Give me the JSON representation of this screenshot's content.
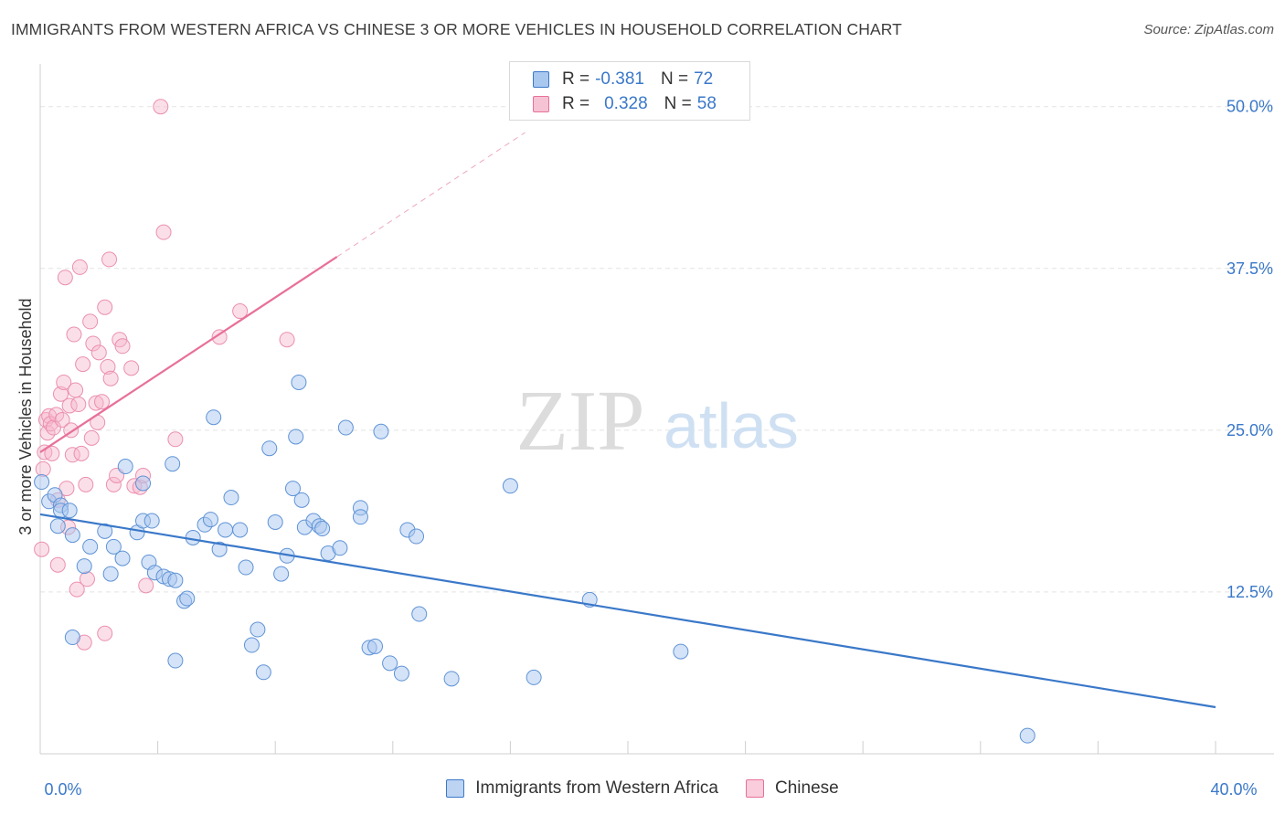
{
  "title": "IMMIGRANTS FROM WESTERN AFRICA VS CHINESE 3 OR MORE VEHICLES IN HOUSEHOLD CORRELATION CHART",
  "source": "Source: ZipAtlas.com",
  "watermark": {
    "zip": "ZIP",
    "atlas": "atlas"
  },
  "colors": {
    "blue": "#3a78c9",
    "blue_fill": "#a9c8ef",
    "pink": "#e8709a",
    "pink_fill": "#f6b8cc",
    "grid": "#e3e3e3"
  },
  "legend": {
    "rows": [
      {
        "r_label": "R =",
        "r_value": "-0.381",
        "n_label": "N =",
        "n_value": "72"
      },
      {
        "r_label": "R =",
        "r_value": "0.328",
        "n_label": "N =",
        "n_value": "58"
      }
    ]
  },
  "bottom_legend": [
    "Immigrants from Western Africa",
    "Chinese"
  ],
  "chart_data": {
    "type": "scatter",
    "ylabel": "3 or more Vehicles in Household",
    "xlim": [
      0,
      40
    ],
    "ylim": [
      0,
      53.3
    ],
    "x_tick_labels": [
      {
        "x": 0,
        "label": "0.0%"
      },
      {
        "x": 40,
        "label": "40.0%"
      }
    ],
    "y_tick_labels": [
      {
        "y": 12.5,
        "label": "12.5%"
      },
      {
        "y": 25,
        "label": "25.0%"
      },
      {
        "y": 37.5,
        "label": "37.5%"
      },
      {
        "y": 50,
        "label": "50.0%"
      }
    ],
    "series": [
      {
        "name": "Immigrants from Western Africa",
        "color": "#3a78c9",
        "trend": {
          "x": [
            0,
            40
          ],
          "y": [
            18.5,
            3.6
          ]
        },
        "points": [
          [
            0.05,
            21.0
          ],
          [
            0.3,
            19.5
          ],
          [
            0.5,
            20
          ],
          [
            0.7,
            19.2
          ],
          [
            0.6,
            17.6
          ],
          [
            0.7,
            18.8
          ],
          [
            1.1,
            16.9
          ],
          [
            1.0,
            18.8
          ],
          [
            1.5,
            14.5
          ],
          [
            1.7,
            16.0
          ],
          [
            2.2,
            17.2
          ],
          [
            2.5,
            16.0
          ],
          [
            2.8,
            15.1
          ],
          [
            3.3,
            17.1
          ],
          [
            3.5,
            18.0
          ],
          [
            2.9,
            22.2
          ],
          [
            3.5,
            20.9
          ],
          [
            3.8,
            18.0
          ],
          [
            3.7,
            14.8
          ],
          [
            3.9,
            14.0
          ],
          [
            4.2,
            13.7
          ],
          [
            4.4,
            13.5
          ],
          [
            4.6,
            13.4
          ],
          [
            4.5,
            22.4
          ],
          [
            4.9,
            11.8
          ],
          [
            5.0,
            12.0
          ],
          [
            5.2,
            16.7
          ],
          [
            5.6,
            17.7
          ],
          [
            5.8,
            18.1
          ],
          [
            5.9,
            26.0
          ],
          [
            6.1,
            15.8
          ],
          [
            6.3,
            17.3
          ],
          [
            6.5,
            19.8
          ],
          [
            6.8,
            17.3
          ],
          [
            7.0,
            14.4
          ],
          [
            7.2,
            8.4
          ],
          [
            7.4,
            9.6
          ],
          [
            7.6,
            6.3
          ],
          [
            7.8,
            23.6
          ],
          [
            8.0,
            17.9
          ],
          [
            8.2,
            13.9
          ],
          [
            8.4,
            15.3
          ],
          [
            8.6,
            20.5
          ],
          [
            8.7,
            24.5
          ],
          [
            8.9,
            19.6
          ],
          [
            8.8,
            28.7
          ],
          [
            9.0,
            17.5
          ],
          [
            9.3,
            18.0
          ],
          [
            9.5,
            17.6
          ],
          [
            9.6,
            17.4
          ],
          [
            9.8,
            15.5
          ],
          [
            10.2,
            15.9
          ],
          [
            10.4,
            25.2
          ],
          [
            10.9,
            19.0
          ],
          [
            10.9,
            18.3
          ],
          [
            11.2,
            8.2
          ],
          [
            11.4,
            8.3
          ],
          [
            11.6,
            24.9
          ],
          [
            11.9,
            7.0
          ],
          [
            12.3,
            6.2
          ],
          [
            12.5,
            17.3
          ],
          [
            12.8,
            16.8
          ],
          [
            12.9,
            10.8
          ],
          [
            14.0,
            5.8
          ],
          [
            16.0,
            20.7
          ],
          [
            16.8,
            5.9
          ],
          [
            18.7,
            11.9
          ],
          [
            21.8,
            7.9
          ],
          [
            33.6,
            1.4
          ],
          [
            1.1,
            9.0
          ],
          [
            4.6,
            7.2
          ],
          [
            2.4,
            13.9
          ]
        ]
      },
      {
        "name": "Chinese",
        "color": "#e8709a",
        "trend": {
          "x": [
            0,
            10.1
          ],
          "y": [
            23.3,
            38.4
          ]
        },
        "trend_ext": {
          "x": [
            10.1,
            16.5
          ],
          "y": [
            38.4,
            48.0
          ]
        },
        "points": [
          [
            0.05,
            15.8
          ],
          [
            0.15,
            23.3
          ],
          [
            0.2,
            25.8
          ],
          [
            0.25,
            24.8
          ],
          [
            0.3,
            26.1
          ],
          [
            0.35,
            25.5
          ],
          [
            0.4,
            23.2
          ],
          [
            0.45,
            25.2
          ],
          [
            0.55,
            26.2
          ],
          [
            0.6,
            19.6
          ],
          [
            0.6,
            14.6
          ],
          [
            0.7,
            27.8
          ],
          [
            0.75,
            25.8
          ],
          [
            0.8,
            28.7
          ],
          [
            0.85,
            36.8
          ],
          [
            0.9,
            20.5
          ],
          [
            0.95,
            17.5
          ],
          [
            1.0,
            26.9
          ],
          [
            1.05,
            25.0
          ],
          [
            1.1,
            23.1
          ],
          [
            1.15,
            32.4
          ],
          [
            1.2,
            28.1
          ],
          [
            1.25,
            12.7
          ],
          [
            1.3,
            27.0
          ],
          [
            1.35,
            37.6
          ],
          [
            1.4,
            23.2
          ],
          [
            1.45,
            30.1
          ],
          [
            1.5,
            8.6
          ],
          [
            1.55,
            20.8
          ],
          [
            1.6,
            13.5
          ],
          [
            1.7,
            33.4
          ],
          [
            1.75,
            24.4
          ],
          [
            1.8,
            31.7
          ],
          [
            1.9,
            27.1
          ],
          [
            1.95,
            25.6
          ],
          [
            2.0,
            31.0
          ],
          [
            2.1,
            27.2
          ],
          [
            2.2,
            34.5
          ],
          [
            2.2,
            9.3
          ],
          [
            2.3,
            29.9
          ],
          [
            2.35,
            38.2
          ],
          [
            2.4,
            29.0
          ],
          [
            2.5,
            20.8
          ],
          [
            2.6,
            21.5
          ],
          [
            2.7,
            32.0
          ],
          [
            2.8,
            31.5
          ],
          [
            3.1,
            29.8
          ],
          [
            3.2,
            20.7
          ],
          [
            3.4,
            20.6
          ],
          [
            3.5,
            21.5
          ],
          [
            3.6,
            13.0
          ],
          [
            4.1,
            50.0
          ],
          [
            4.2,
            40.3
          ],
          [
            4.6,
            24.3
          ],
          [
            6.1,
            32.2
          ],
          [
            6.8,
            34.2
          ],
          [
            8.4,
            32.0
          ],
          [
            0.1,
            22.0
          ]
        ]
      }
    ]
  }
}
